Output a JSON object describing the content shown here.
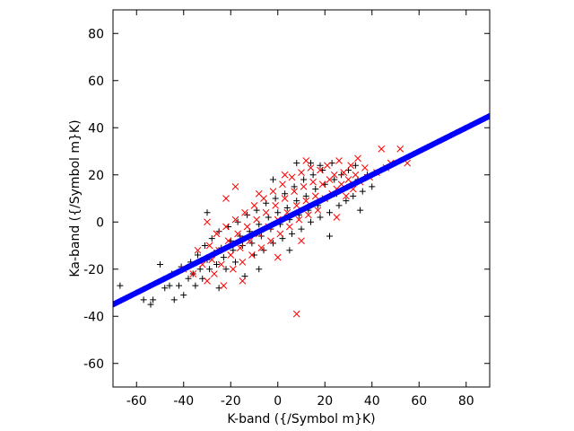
{
  "chart_data": {
    "type": "scatter",
    "title": "",
    "xlabel": "K-band ({/Symbol m}K)",
    "ylabel": "Ka-band ({/Symbol m}K)",
    "xlim": [
      -70,
      90
    ],
    "ylim": [
      -70,
      90
    ],
    "xticks": [
      -60,
      -40,
      -20,
      0,
      20,
      40,
      60,
      80
    ],
    "yticks": [
      -60,
      -40,
      -20,
      0,
      20,
      40,
      60,
      80
    ],
    "grid": false,
    "legend": "none",
    "series": [
      {
        "marker": "plus",
        "color": "#000000",
        "points": [
          [
            -67,
            -27
          ],
          [
            -57,
            -33
          ],
          [
            -54,
            -35
          ],
          [
            -53,
            -33
          ],
          [
            -50,
            -18
          ],
          [
            -48,
            -28
          ],
          [
            -46,
            -27
          ],
          [
            -45,
            -22
          ],
          [
            -42,
            -27
          ],
          [
            -41,
            -19
          ],
          [
            -40,
            -31
          ],
          [
            -38,
            -24
          ],
          [
            -37,
            -17
          ],
          [
            -36,
            -22
          ],
          [
            -35,
            -27
          ],
          [
            -34,
            -14
          ],
          [
            -33,
            -20
          ],
          [
            -32,
            -24
          ],
          [
            -31,
            -10
          ],
          [
            -30,
            -16
          ],
          [
            -29,
            -20
          ],
          [
            -28,
            -7
          ],
          [
            -27,
            -13
          ],
          [
            -26,
            -18
          ],
          [
            -25,
            -4
          ],
          [
            -24,
            -11
          ],
          [
            -23,
            -15
          ],
          [
            -22,
            -20
          ],
          [
            -21,
            -2
          ],
          [
            -20,
            -8
          ],
          [
            -19,
            -12
          ],
          [
            -18,
            -17
          ],
          [
            -17,
            0
          ],
          [
            -16,
            -6
          ],
          [
            -15,
            -10
          ],
          [
            -14,
            -23
          ],
          [
            -13,
            3
          ],
          [
            -12,
            -4
          ],
          [
            -11,
            -9
          ],
          [
            -10,
            -14
          ],
          [
            -9,
            5
          ],
          [
            -8,
            -1
          ],
          [
            -7,
            -6
          ],
          [
            -6,
            -12
          ],
          [
            -5,
            8
          ],
          [
            -4,
            2
          ],
          [
            -3,
            -3
          ],
          [
            -2,
            -9
          ],
          [
            -1,
            10
          ],
          [
            0,
            4
          ],
          [
            1,
            -1
          ],
          [
            2,
            -7
          ],
          [
            3,
            12
          ],
          [
            4,
            6
          ],
          [
            5,
            1
          ],
          [
            6,
            -5
          ],
          [
            7,
            15
          ],
          [
            8,
            9
          ],
          [
            9,
            3
          ],
          [
            10,
            -3
          ],
          [
            11,
            18
          ],
          [
            12,
            11
          ],
          [
            13,
            5
          ],
          [
            14,
            0
          ],
          [
            15,
            20
          ],
          [
            16,
            14
          ],
          [
            17,
            7
          ],
          [
            18,
            2
          ],
          [
            19,
            22
          ],
          [
            20,
            16
          ],
          [
            21,
            10
          ],
          [
            22,
            4
          ],
          [
            23,
            25
          ],
          [
            24,
            18
          ],
          [
            25,
            12
          ],
          [
            26,
            7
          ],
          [
            27,
            20
          ],
          [
            28,
            14
          ],
          [
            29,
            9
          ],
          [
            30,
            22
          ],
          [
            31,
            16
          ],
          [
            32,
            11
          ],
          [
            33,
            24
          ],
          [
            34,
            18
          ],
          [
            36,
            13
          ],
          [
            38,
            20
          ],
          [
            40,
            15
          ],
          [
            8,
            25
          ],
          [
            -2,
            18
          ],
          [
            14,
            25
          ],
          [
            -30,
            4
          ],
          [
            -25,
            -28
          ],
          [
            -8,
            -20
          ],
          [
            5,
            -12
          ],
          [
            22,
            -6
          ],
          [
            35,
            5
          ],
          [
            -44,
            -33
          ],
          [
            18,
            24
          ]
        ]
      },
      {
        "marker": "cross",
        "color": "#ff0000",
        "points": [
          [
            -40,
            -20
          ],
          [
            -36,
            -22
          ],
          [
            -34,
            -12
          ],
          [
            -32,
            -18
          ],
          [
            -30,
            -25
          ],
          [
            -29,
            -10
          ],
          [
            -28,
            -16
          ],
          [
            -27,
            -22
          ],
          [
            -26,
            -5
          ],
          [
            -25,
            -12
          ],
          [
            -24,
            -18
          ],
          [
            -23,
            -27
          ],
          [
            -22,
            -2
          ],
          [
            -21,
            -8
          ],
          [
            -20,
            -14
          ],
          [
            -19,
            -20
          ],
          [
            -18,
            1
          ],
          [
            -17,
            -5
          ],
          [
            -16,
            -11
          ],
          [
            -15,
            -17
          ],
          [
            -14,
            4
          ],
          [
            -13,
            -2
          ],
          [
            -12,
            -8
          ],
          [
            -11,
            -14
          ],
          [
            -10,
            7
          ],
          [
            -9,
            1
          ],
          [
            -8,
            -5
          ],
          [
            -7,
            -11
          ],
          [
            -6,
            10
          ],
          [
            -5,
            4
          ],
          [
            -4,
            -2
          ],
          [
            -3,
            -8
          ],
          [
            -2,
            13
          ],
          [
            -1,
            7
          ],
          [
            0,
            1
          ],
          [
            1,
            -5
          ],
          [
            2,
            16
          ],
          [
            3,
            10
          ],
          [
            4,
            4
          ],
          [
            5,
            -2
          ],
          [
            6,
            19
          ],
          [
            7,
            13
          ],
          [
            8,
            7
          ],
          [
            9,
            1
          ],
          [
            10,
            21
          ],
          [
            11,
            15
          ],
          [
            12,
            9
          ],
          [
            13,
            3
          ],
          [
            14,
            23
          ],
          [
            15,
            17
          ],
          [
            16,
            11
          ],
          [
            17,
            5
          ],
          [
            18,
            22
          ],
          [
            19,
            16
          ],
          [
            20,
            10
          ],
          [
            21,
            24
          ],
          [
            22,
            18
          ],
          [
            23,
            12
          ],
          [
            24,
            20
          ],
          [
            25,
            14
          ],
          [
            26,
            26
          ],
          [
            27,
            16
          ],
          [
            28,
            21
          ],
          [
            29,
            11
          ],
          [
            30,
            18
          ],
          [
            31,
            24
          ],
          [
            32,
            14
          ],
          [
            33,
            20
          ],
          [
            34,
            27
          ],
          [
            35,
            17
          ],
          [
            37,
            23
          ],
          [
            39,
            19
          ],
          [
            42,
            21
          ],
          [
            44,
            31
          ],
          [
            46,
            23
          ],
          [
            48,
            25
          ],
          [
            52,
            31
          ],
          [
            55,
            25
          ],
          [
            8,
            -39
          ],
          [
            -18,
            15
          ],
          [
            -8,
            12
          ],
          [
            3,
            20
          ],
          [
            12,
            26
          ],
          [
            -15,
            -25
          ],
          [
            0,
            -15
          ],
          [
            10,
            -8
          ],
          [
            25,
            2
          ],
          [
            -30,
            0
          ],
          [
            -22,
            10
          ]
        ]
      },
      {
        "marker": "dot",
        "color": "#0000ff",
        "fit": {
          "slope": 0.5,
          "intercept": 0,
          "x_range": [
            -70,
            90
          ]
        }
      }
    ]
  }
}
